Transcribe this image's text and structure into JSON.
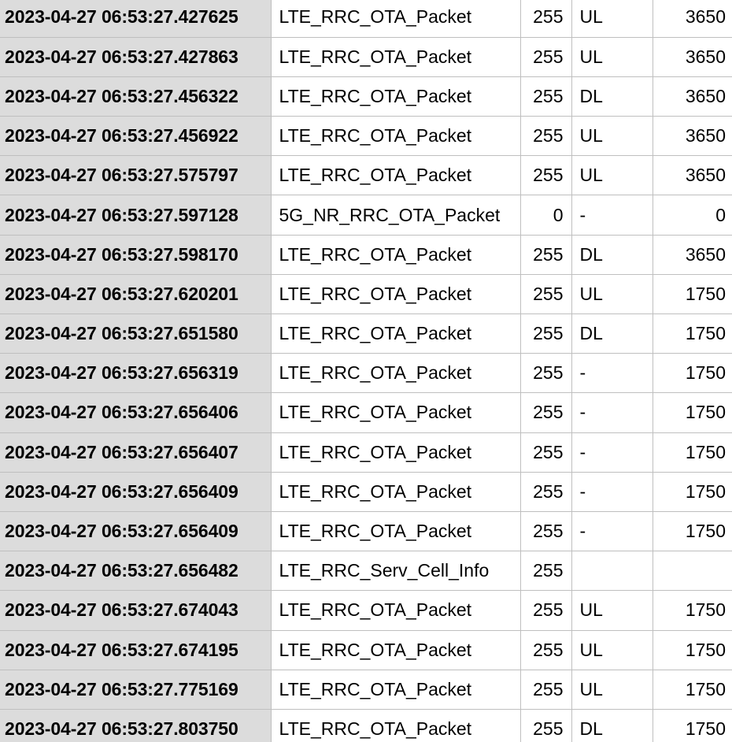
{
  "rows": [
    {
      "timestamp": "2023-04-27 06:53:27.427625",
      "type": "LTE_RRC_OTA_Packet",
      "id": "255",
      "direction": "UL",
      "length": "3650"
    },
    {
      "timestamp": "2023-04-27 06:53:27.427863",
      "type": "LTE_RRC_OTA_Packet",
      "id": "255",
      "direction": "UL",
      "length": "3650"
    },
    {
      "timestamp": "2023-04-27 06:53:27.456322",
      "type": "LTE_RRC_OTA_Packet",
      "id": "255",
      "direction": "DL",
      "length": "3650"
    },
    {
      "timestamp": "2023-04-27 06:53:27.456922",
      "type": "LTE_RRC_OTA_Packet",
      "id": "255",
      "direction": "UL",
      "length": "3650"
    },
    {
      "timestamp": "2023-04-27 06:53:27.575797",
      "type": "LTE_RRC_OTA_Packet",
      "id": "255",
      "direction": "UL",
      "length": "3650"
    },
    {
      "timestamp": "2023-04-27 06:53:27.597128",
      "type": "5G_NR_RRC_OTA_Packet",
      "id": "0",
      "direction": "-",
      "length": "0"
    },
    {
      "timestamp": "2023-04-27 06:53:27.598170",
      "type": "LTE_RRC_OTA_Packet",
      "id": "255",
      "direction": "DL",
      "length": "3650"
    },
    {
      "timestamp": "2023-04-27 06:53:27.620201",
      "type": "LTE_RRC_OTA_Packet",
      "id": "255",
      "direction": "UL",
      "length": "1750"
    },
    {
      "timestamp": "2023-04-27 06:53:27.651580",
      "type": "LTE_RRC_OTA_Packet",
      "id": "255",
      "direction": "DL",
      "length": "1750"
    },
    {
      "timestamp": "2023-04-27 06:53:27.656319",
      "type": "LTE_RRC_OTA_Packet",
      "id": "255",
      "direction": "-",
      "length": "1750"
    },
    {
      "timestamp": "2023-04-27 06:53:27.656406",
      "type": "LTE_RRC_OTA_Packet",
      "id": "255",
      "direction": "-",
      "length": "1750"
    },
    {
      "timestamp": "2023-04-27 06:53:27.656407",
      "type": "LTE_RRC_OTA_Packet",
      "id": "255",
      "direction": "-",
      "length": "1750"
    },
    {
      "timestamp": "2023-04-27 06:53:27.656409",
      "type": "LTE_RRC_OTA_Packet",
      "id": "255",
      "direction": "-",
      "length": "1750"
    },
    {
      "timestamp": "2023-04-27 06:53:27.656409",
      "type": "LTE_RRC_OTA_Packet",
      "id": "255",
      "direction": "-",
      "length": "1750"
    },
    {
      "timestamp": "2023-04-27 06:53:27.656482",
      "type": "LTE_RRC_Serv_Cell_Info",
      "id": "255",
      "direction": "",
      "length": ""
    },
    {
      "timestamp": "2023-04-27 06:53:27.674043",
      "type": "LTE_RRC_OTA_Packet",
      "id": "255",
      "direction": "UL",
      "length": "1750"
    },
    {
      "timestamp": "2023-04-27 06:53:27.674195",
      "type": "LTE_RRC_OTA_Packet",
      "id": "255",
      "direction": "UL",
      "length": "1750"
    },
    {
      "timestamp": "2023-04-27 06:53:27.775169",
      "type": "LTE_RRC_OTA_Packet",
      "id": "255",
      "direction": "UL",
      "length": "1750"
    },
    {
      "timestamp": "2023-04-27 06:53:27.803750",
      "type": "LTE_RRC_OTA_Packet",
      "id": "255",
      "direction": "DL",
      "length": "1750"
    }
  ]
}
